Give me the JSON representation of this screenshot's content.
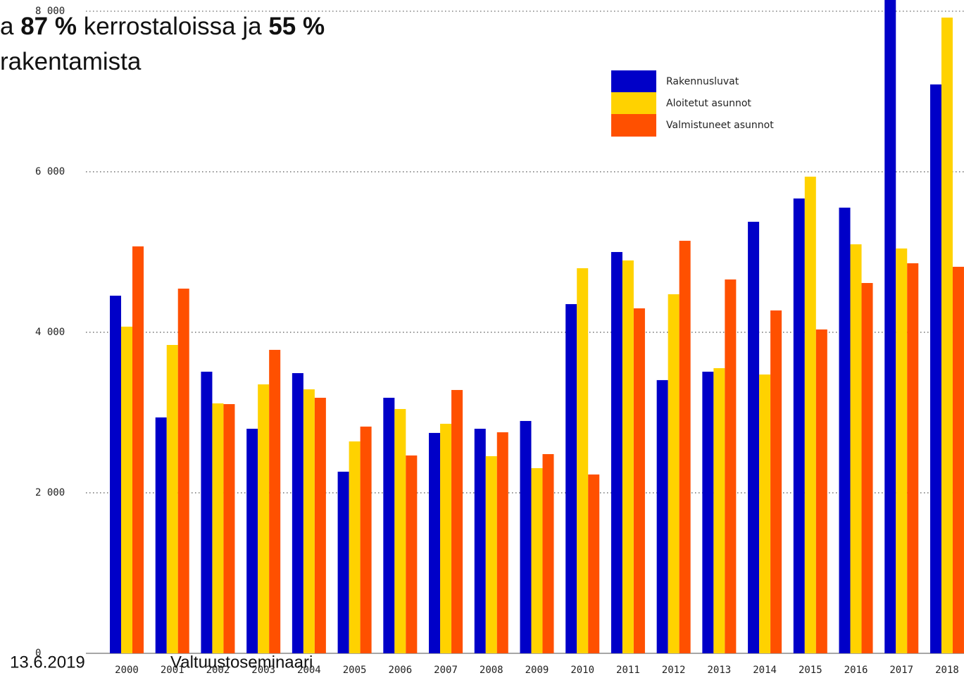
{
  "chart_data": {
    "type": "bar",
    "title_parts": [
      [
        "a ",
        "87 %",
        " kerrostaloissa ja ",
        "55 %"
      ],
      [
        "rakentamista"
      ]
    ],
    "title_bold": [
      [
        false,
        true,
        false,
        true
      ],
      [
        false
      ]
    ],
    "categories": [
      "2000",
      "2001",
      "2002",
      "2003",
      "2004",
      "2005",
      "2006",
      "2007",
      "2008",
      "2009",
      "2010",
      "2011",
      "2012",
      "2013",
      "2014",
      "2015",
      "2016",
      "2017",
      "2018"
    ],
    "series": [
      {
        "name": "Rakennusluvat",
        "color": "#0000c8",
        "values": [
          4456,
          2939,
          3509,
          2798,
          3491,
          2263,
          3184,
          2746,
          2798,
          2895,
          4351,
          5000,
          3404,
          3509,
          5377,
          5667,
          5553,
          8500,
          7088
        ]
      },
      {
        "name": "Aloitetut asunnot",
        "color": "#ffd200",
        "values": [
          4070,
          3842,
          3114,
          3351,
          3289,
          2640,
          3044,
          2860,
          2456,
          2307,
          4798,
          4895,
          4474,
          3553,
          3474,
          5939,
          5096,
          5044,
          7921
        ]
      },
      {
        "name": "Valmistuneet asunnot",
        "color": "#ff5000",
        "values": [
          5070,
          4544,
          3105,
          3781,
          3184,
          2825,
          2465,
          3281,
          2754,
          2482,
          2228,
          4298,
          5140,
          4658,
          4272,
          4035,
          4614,
          4860,
          4816
        ]
      }
    ],
    "ylim": [
      0,
      8140
    ],
    "yticks": [
      0,
      {
        "value": 2000,
        "label": "2 000"
      },
      {
        "value": 4000,
        "label": "4 000"
      },
      {
        "value": 6000,
        "label": "6 000"
      },
      {
        "value": 8000,
        "label": "8 000"
      }
    ],
    "grid": true,
    "footer": [
      "13.6.2019",
      "Valtuustoseminaari"
    ]
  }
}
